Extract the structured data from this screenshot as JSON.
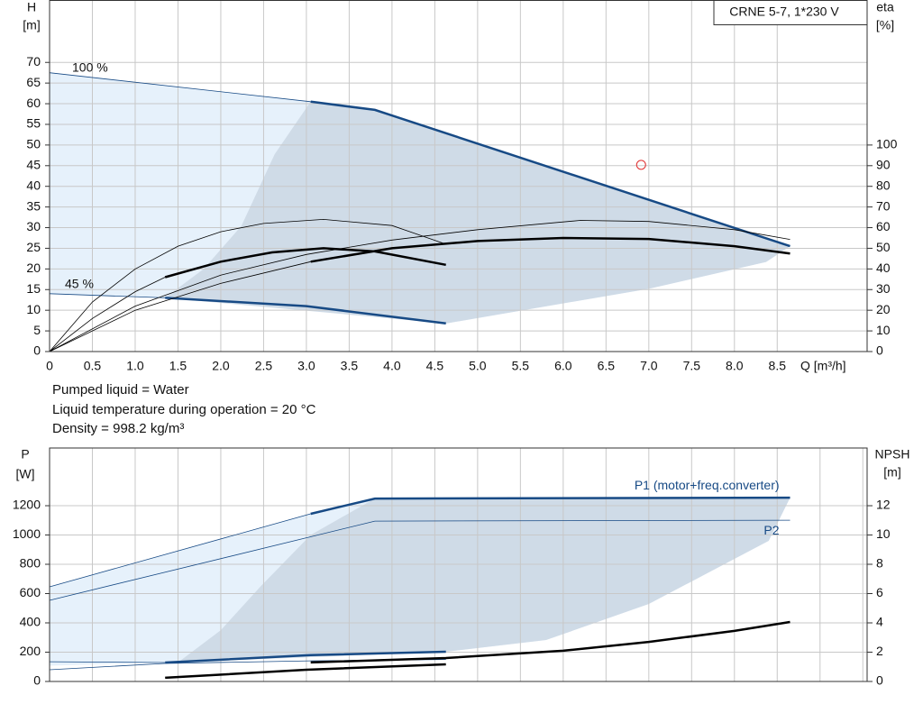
{
  "chart_data": [
    {
      "type": "line",
      "title": "CRNE 5-7, 1*230 V",
      "ylabel": [
        "H",
        "[m]"
      ],
      "y2label": [
        "eta",
        "[%]"
      ],
      "xlabel": "Q [m³/h]",
      "xlim": [
        0,
        9.55
      ],
      "ylim": [
        0,
        85
      ],
      "y2lim": [
        0,
        170
      ],
      "xticks": [
        0,
        0.5,
        {
          "value": 1,
          "label": "1.0"
        },
        1.5,
        {
          "value": 2,
          "label": "2.0"
        },
        2.5,
        {
          "value": 3,
          "label": "3.0"
        },
        3.5,
        {
          "value": 4,
          "label": "4.0"
        },
        4.5,
        {
          "value": 5,
          "label": "5.0"
        },
        5.5,
        {
          "value": 6,
          "label": "6.0"
        },
        6.5,
        {
          "value": 7,
          "label": "7.0"
        },
        7.5,
        {
          "value": 8,
          "label": "8.0"
        },
        8.5
      ],
      "yticks": [
        0,
        5,
        10,
        15,
        20,
        25,
        30,
        35,
        40,
        45,
        50,
        55,
        60,
        65,
        70
      ],
      "y2ticks": [
        0,
        10,
        20,
        30,
        40,
        50,
        60,
        70,
        80,
        90,
        100
      ],
      "grid": true,
      "xtick_labels": true,
      "regions": [
        {
          "color": "#e6f1fb",
          "x": [
            0,
            3.05,
            3.8,
            8.65,
            8.37,
            7,
            4.63,
            3,
            1.35,
            0
          ],
          "values": [
            67.5,
            60.5,
            58.5,
            25.5,
            21.7,
            15.2,
            6.8,
            11,
            13,
            14
          ]
        },
        {
          "color": "#cfdbe7",
          "x": [
            1.35,
            1.8,
            2.24,
            2.63,
            3.05,
            3.8,
            8.65,
            8.37,
            7,
            4.63
          ],
          "values": [
            13,
            20,
            30.4,
            47.8,
            60.5,
            58.5,
            25.5,
            21.7,
            15.2,
            6.8
          ]
        }
      ],
      "series": [
        {
          "color": "#174a85",
          "style": "thin",
          "x": [
            0,
            3.05
          ],
          "values": [
            67.5,
            60.5
          ]
        },
        {
          "color": "#174a85",
          "style": "thick",
          "x": [
            3.05,
            3.8,
            8.65
          ],
          "values": [
            60.5,
            58.5,
            25.5
          ]
        },
        {
          "color": "#174a85",
          "style": "thin",
          "x": [
            0,
            1.35
          ],
          "values": [
            14,
            13
          ]
        },
        {
          "color": "#174a85",
          "style": "thick",
          "x": [
            1.35,
            3,
            4.63
          ],
          "values": [
            13,
            11,
            6.8
          ]
        },
        {
          "color": "#000000",
          "style": "thin",
          "axis": "y2",
          "x": [
            0,
            0.5,
            1,
            1.5,
            2,
            2.5,
            3.2,
            4,
            4.63
          ],
          "values": [
            0,
            24,
            40,
            51,
            58,
            62,
            64,
            61,
            52
          ]
        },
        {
          "color": "#000000",
          "style": "thin",
          "axis": "y2",
          "x": [
            0,
            1,
            2,
            3,
            4,
            5,
            6.2,
            7,
            8,
            8.65
          ],
          "values": [
            0,
            22,
            37,
            47,
            54,
            59,
            63.5,
            63,
            59,
            54.3
          ]
        },
        {
          "color": "#000000",
          "style": "thin",
          "axis": "y2",
          "x": [
            0,
            0.5,
            1,
            1.35
          ],
          "values": [
            0,
            16,
            29,
            36
          ]
        },
        {
          "color": "#000000",
          "style": "thin",
          "axis": "y2",
          "x": [
            0,
            1,
            2,
            3.05
          ],
          "values": [
            0,
            20,
            33,
            43.5
          ]
        },
        {
          "color": "#000000",
          "style": "thick",
          "axis": "y2",
          "x": [
            1.35,
            2,
            2.6,
            3.2,
            3.8,
            4.63
          ],
          "values": [
            36,
            43.5,
            48,
            50,
            48.5,
            42
          ]
        },
        {
          "color": "#000000",
          "style": "thick",
          "axis": "y2",
          "x": [
            3.05,
            4,
            5,
            6,
            7,
            8,
            8.65
          ],
          "values": [
            43.5,
            50,
            53.5,
            55,
            54.5,
            51,
            47.5
          ]
        }
      ],
      "points": [
        {
          "color": "#e03030",
          "x": 6.91,
          "value": 45.2
        }
      ],
      "annotations": [
        "100 %",
        "45 %"
      ],
      "notes": [
        "Pumped liquid = Water",
        "Liquid temperature during operation = 20 °C",
        "Density = 998.2 kg/m³"
      ]
    },
    {
      "type": "line",
      "ylabel": [
        "P",
        "[W]"
      ],
      "y2label": [
        "NPSH",
        "[m]"
      ],
      "xlim": [
        0,
        9.55
      ],
      "ylim": [
        0,
        1594
      ],
      "y2lim": [
        0,
        15.94
      ],
      "xticks": [
        0,
        0.5,
        1,
        1.5,
        2,
        2.5,
        3,
        3.5,
        4,
        4.5,
        5,
        5.5,
        6,
        6.5,
        7,
        7.5,
        8,
        8.5,
        9,
        9.5
      ],
      "yticks": [
        0,
        200,
        400,
        600,
        800,
        1000,
        1200
      ],
      "y2ticks": [
        0,
        2,
        4,
        6,
        8,
        10,
        12
      ],
      "grid": true,
      "xtick_labels": false,
      "regions": [
        {
          "color": "#e6f1fb",
          "x": [
            0,
            3.05,
            3.8,
            8.65,
            8.4,
            7,
            5.8,
            4.63,
            1.35,
            0
          ],
          "values": [
            646,
            1145,
            1249,
            1255,
            960,
            529,
            283,
            203,
            129,
            108
          ]
        },
        {
          "color": "#cfdbe7",
          "x": [
            1.5,
            2,
            2.47,
            3.05,
            3.8,
            8.65,
            8.4,
            7,
            5.8,
            4.63
          ],
          "values": [
            130,
            350,
            652,
            1000,
            1249,
            1255,
            960,
            529,
            283,
            203
          ]
        }
      ],
      "series": [
        {
          "color": "#174a85",
          "style": "thin",
          "x": [
            0,
            3.05
          ],
          "values": [
            646,
            1145
          ]
        },
        {
          "name": "P1 (motor+freq.converter)",
          "color": "#174a85",
          "style": "thick",
          "x": [
            3.05,
            3.8,
            8.65
          ],
          "values": [
            1145,
            1249,
            1255
          ]
        },
        {
          "name": "P2",
          "color": "#174a85",
          "style": "thin",
          "x": [
            0,
            3.8,
            8.65
          ],
          "values": [
            554,
            1095,
            1101
          ]
        },
        {
          "color": "#174a85",
          "style": "thin",
          "x": [
            0,
            1.35
          ],
          "values": [
            135,
            129
          ]
        },
        {
          "color": "#174a85",
          "style": "thick",
          "x": [
            1.35,
            3.05,
            4.63
          ],
          "values": [
            129,
            180,
            203
          ]
        },
        {
          "color": "#174a85",
          "style": "thin",
          "x": [
            0,
            1.35,
            3.05,
            4.63
          ],
          "values": [
            80,
            123,
            141,
            150
          ]
        },
        {
          "color": "#000000",
          "style": "thick",
          "axis": "y2",
          "x": [
            1.35,
            3,
            4.63
          ],
          "values": [
            0.25,
            0.8,
            1.17
          ]
        },
        {
          "color": "#000000",
          "style": "thick",
          "axis": "y2",
          "x": [
            3.05,
            4.63,
            6,
            7,
            8,
            8.65
          ],
          "values": [
            1.3,
            1.6,
            2.1,
            2.7,
            3.45,
            4.06
          ]
        }
      ]
    }
  ]
}
